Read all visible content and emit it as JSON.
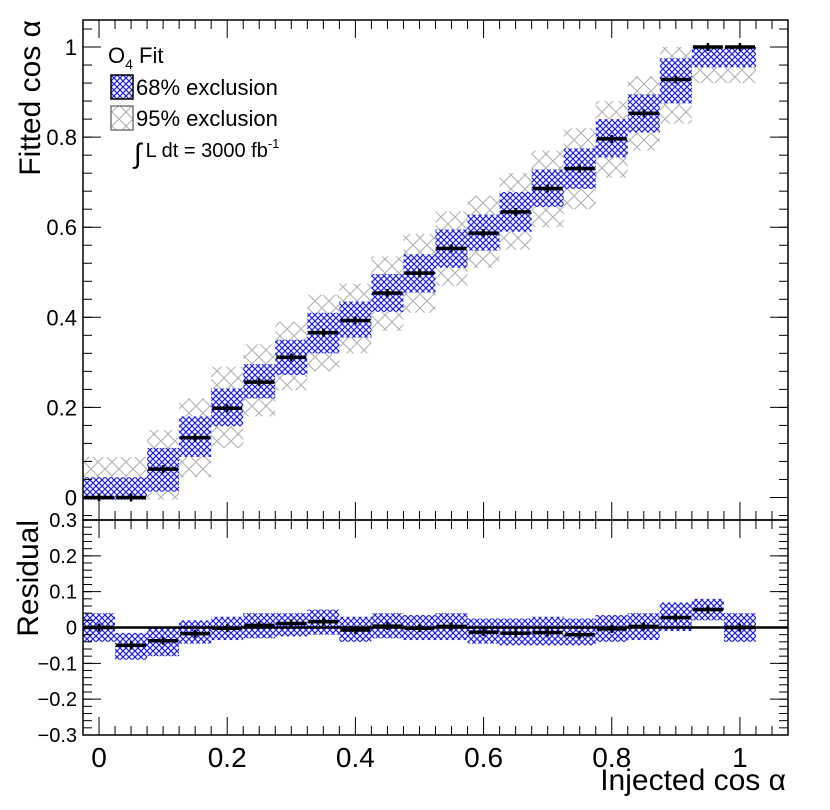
{
  "chart_data": [
    {
      "type": "bar",
      "ylabel": "Fitted cos α",
      "ylim": [
        -0.05,
        1.06
      ],
      "xlim": [
        -0.025,
        1.075
      ],
      "yticks": [
        "0",
        "0.2",
        "0.4",
        "0.6",
        "0.8",
        "1"
      ],
      "grid": false,
      "legend": {
        "placement": "top-left",
        "title_main": "O",
        "title_sub": "4",
        "title_rest": " Fit",
        "entries": [
          {
            "label": "68% exclusion",
            "color": "#3333ff",
            "style": "hatch"
          },
          {
            "label": "95% exclusion",
            "color": "#aaaaaa",
            "style": "hatch"
          }
        ],
        "lumi_symbol": "∫",
        "lumi_text": "L dt = 3000 fb",
        "lumi_sup": "-1"
      },
      "x": [
        0.0,
        0.05,
        0.1,
        0.15,
        0.2,
        0.25,
        0.3,
        0.35,
        0.4,
        0.45,
        0.5,
        0.55,
        0.6,
        0.65,
        0.7,
        0.75,
        0.8,
        0.85,
        0.9,
        0.95,
        1.0
      ],
      "series": [
        {
          "name": "O4 Fit",
          "values": [
            0.0,
            0.0,
            0.063,
            0.133,
            0.198,
            0.256,
            0.311,
            0.366,
            0.393,
            0.454,
            0.498,
            0.553,
            0.587,
            0.634,
            0.686,
            0.73,
            0.796,
            0.853,
            0.928,
            1.0,
            1.0
          ]
        },
        {
          "name": "68% exclusion",
          "low": [
            -0.005,
            -0.005,
            0.013,
            0.09,
            0.158,
            0.22,
            0.272,
            0.32,
            0.355,
            0.412,
            0.455,
            0.51,
            0.548,
            0.59,
            0.645,
            0.685,
            0.755,
            0.81,
            0.875,
            0.955,
            0.955
          ],
          "high": [
            0.045,
            0.045,
            0.11,
            0.18,
            0.242,
            0.296,
            0.35,
            0.41,
            0.435,
            0.496,
            0.54,
            0.595,
            0.628,
            0.678,
            0.728,
            0.775,
            0.84,
            0.895,
            0.975,
            1.0,
            1.0
          ]
        },
        {
          "name": "95% exclusion",
          "low": [
            -0.005,
            -0.005,
            -0.005,
            0.045,
            0.11,
            0.18,
            0.238,
            0.28,
            0.32,
            0.37,
            0.41,
            0.47,
            0.51,
            0.55,
            0.6,
            0.64,
            0.71,
            0.77,
            0.83,
            0.92,
            0.92
          ],
          "high": [
            0.09,
            0.09,
            0.15,
            0.22,
            0.29,
            0.34,
            0.39,
            0.45,
            0.475,
            0.535,
            0.585,
            0.635,
            0.67,
            0.72,
            0.77,
            0.82,
            0.88,
            0.935,
            1.0,
            1.0,
            1.0
          ]
        }
      ]
    },
    {
      "type": "bar",
      "xlabel": "Injected cos α",
      "ylabel": "Residual",
      "ylim": [
        -0.3,
        0.3
      ],
      "xlim": [
        -0.025,
        1.075
      ],
      "xticks": [
        "0",
        "0.2",
        "0.4",
        "0.6",
        "0.8",
        "1"
      ],
      "yticks": [
        "−0.3",
        "−0.2",
        "−0.1",
        "0",
        "0.1",
        "0.2",
        "0.3"
      ],
      "grid": false,
      "x": [
        0.0,
        0.05,
        0.1,
        0.15,
        0.2,
        0.25,
        0.3,
        0.35,
        0.4,
        0.45,
        0.5,
        0.55,
        0.6,
        0.65,
        0.7,
        0.75,
        0.8,
        0.85,
        0.9,
        0.95,
        1.0
      ],
      "series": [
        {
          "name": "Residual",
          "values": [
            0.0,
            -0.05,
            -0.037,
            -0.017,
            -0.002,
            0.006,
            0.011,
            0.016,
            -0.007,
            0.004,
            -0.002,
            0.003,
            -0.013,
            -0.016,
            -0.014,
            -0.02,
            -0.004,
            0.003,
            0.028,
            0.05,
            0.0
          ]
        },
        {
          "name": "68% exclusion",
          "low": [
            -0.04,
            -0.09,
            -0.08,
            -0.045,
            -0.035,
            -0.03,
            -0.025,
            -0.02,
            -0.04,
            -0.03,
            -0.035,
            -0.035,
            -0.045,
            -0.05,
            -0.05,
            -0.05,
            -0.04,
            -0.035,
            -0.01,
            0.02,
            -0.04
          ],
          "high": [
            0.04,
            -0.015,
            0.0,
            0.02,
            0.03,
            0.04,
            0.04,
            0.05,
            0.03,
            0.04,
            0.035,
            0.04,
            0.025,
            0.025,
            0.03,
            0.025,
            0.035,
            0.04,
            0.07,
            0.08,
            0.04
          ]
        }
      ]
    }
  ]
}
